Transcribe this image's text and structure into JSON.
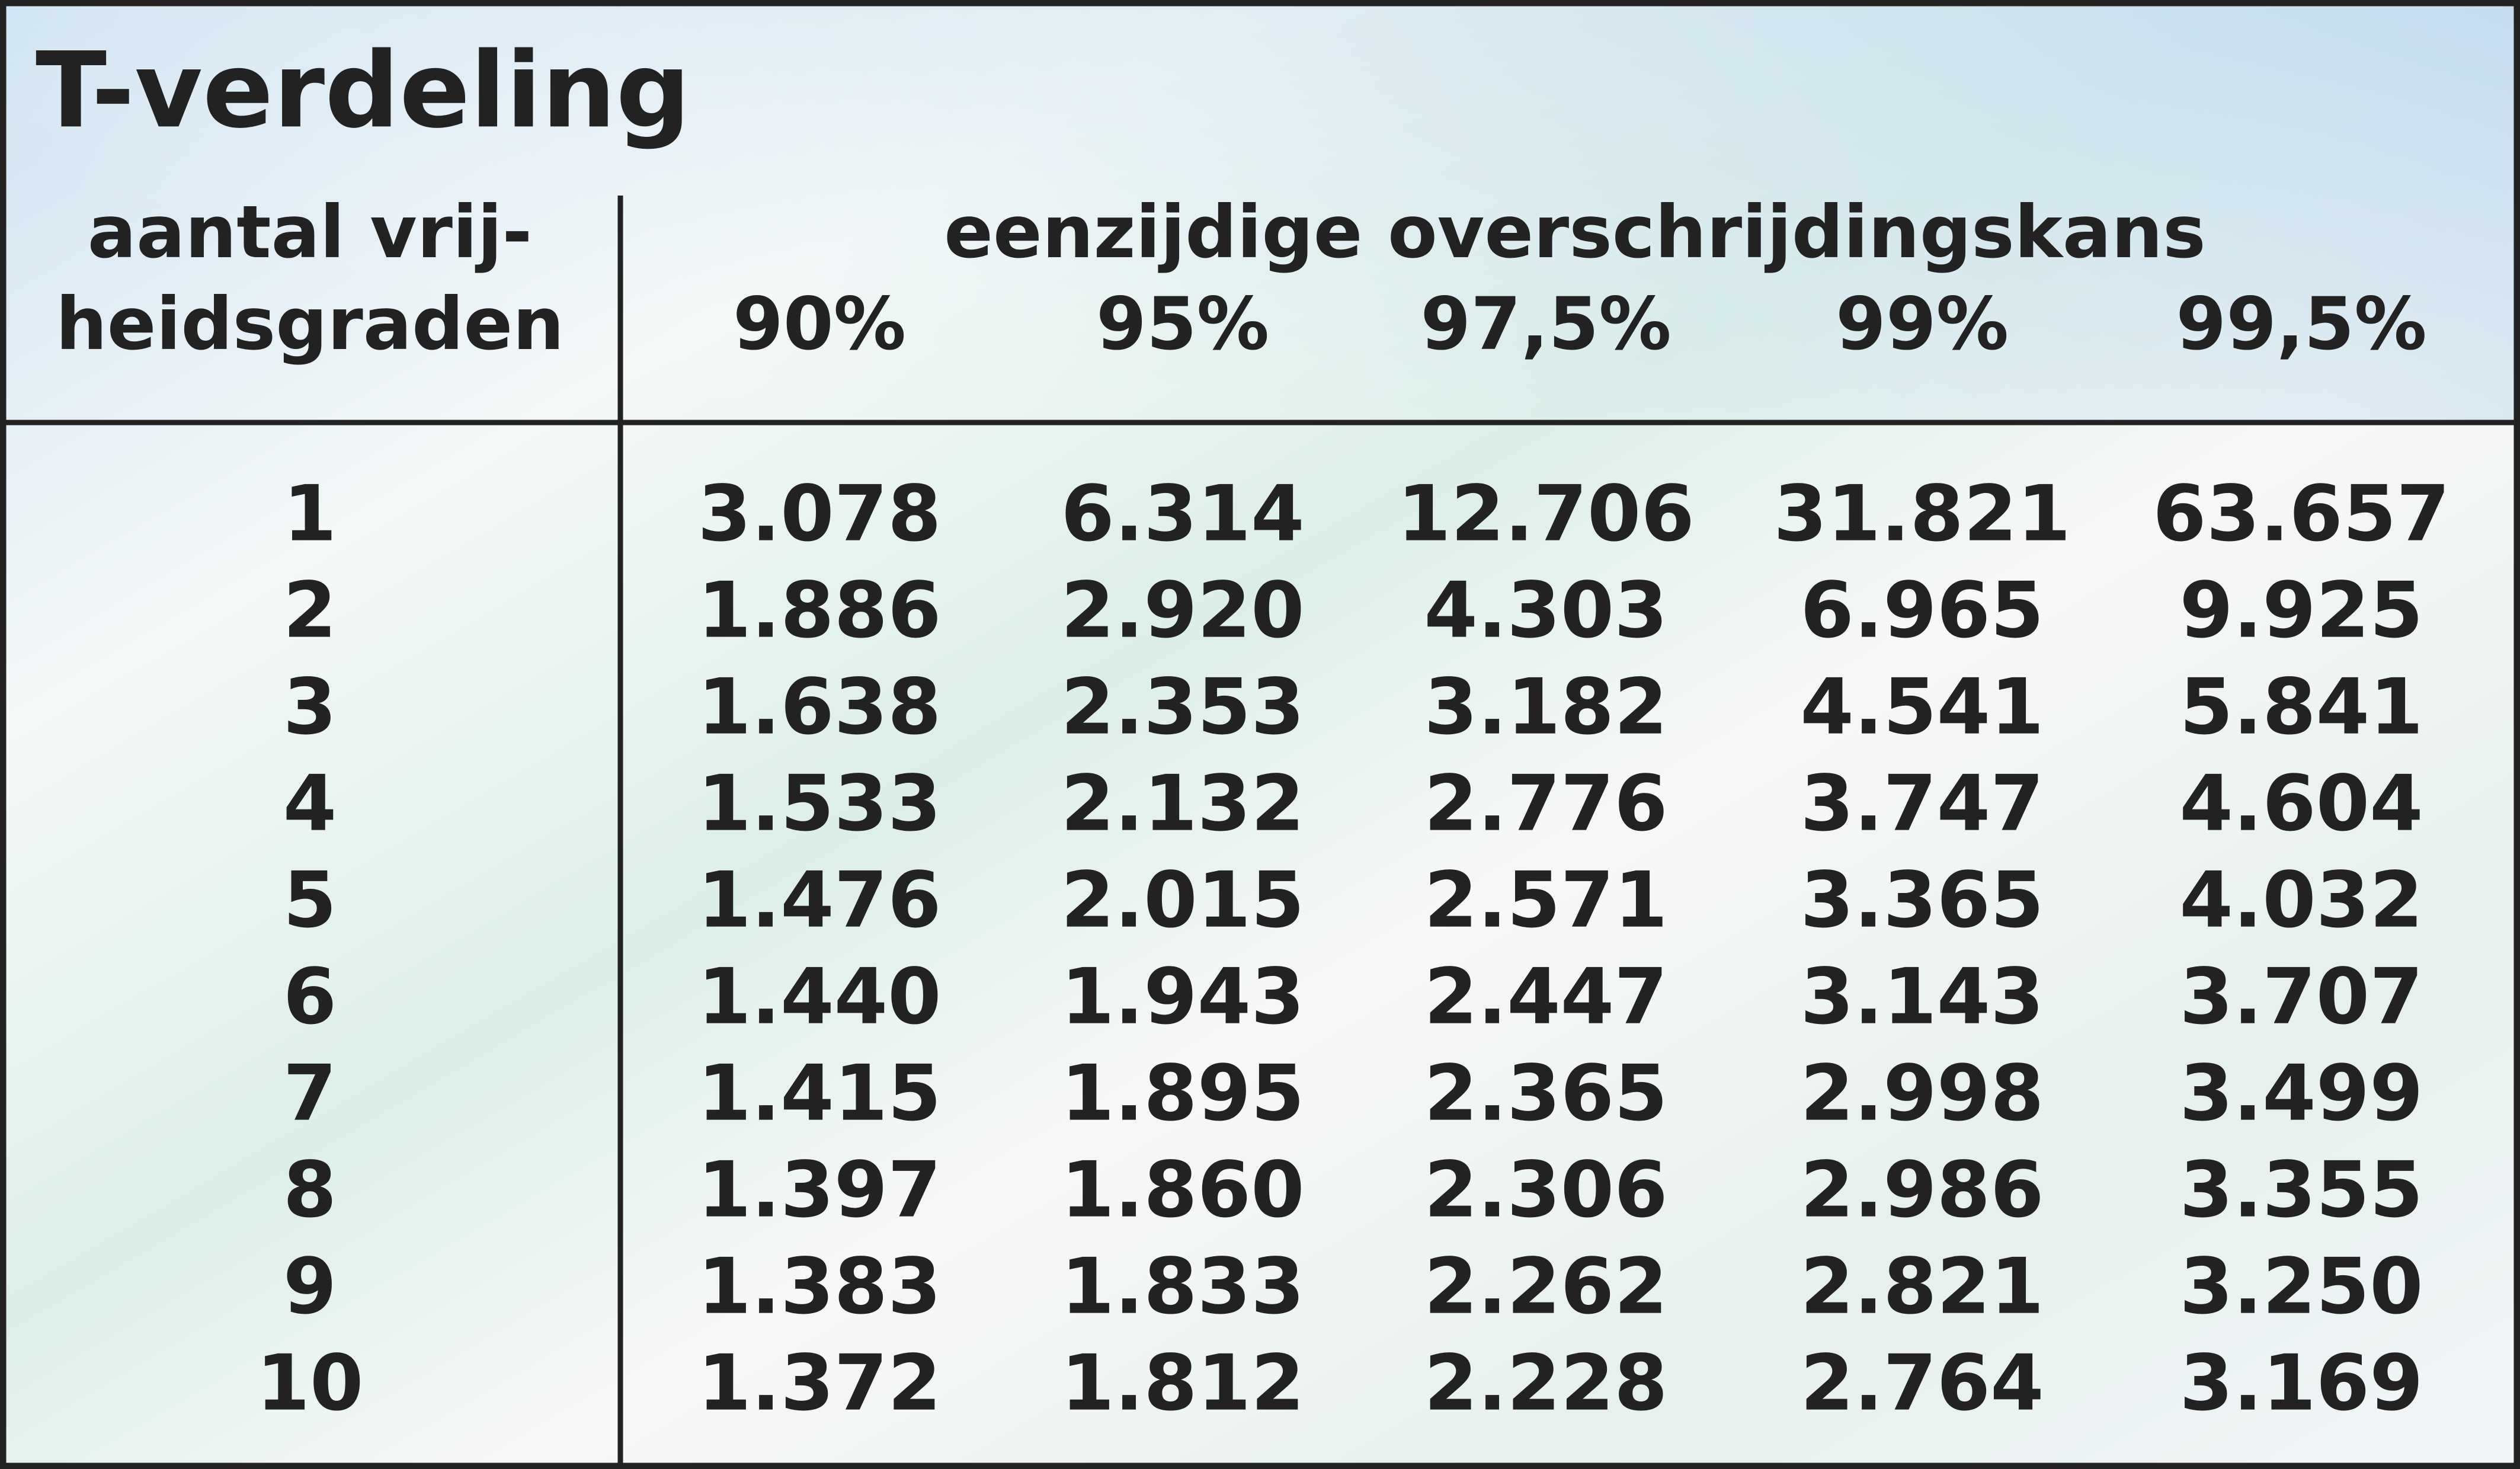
{
  "title": "T-verdeling",
  "table": {
    "row_header": [
      "aantal vrij-",
      "heidsgraden"
    ],
    "group_header": "eenzijdige overschrijdingskans",
    "columns": [
      "90%",
      "95%",
      "97,5%",
      "99%",
      "99,5%"
    ],
    "rows": [
      [
        "1",
        "3.078",
        "6.314",
        "12.706",
        "31.821",
        "63.657"
      ],
      [
        "2",
        "1.886",
        "2.920",
        "4.303",
        "6.965",
        "9.925"
      ],
      [
        "3",
        "1.638",
        "2.353",
        "3.182",
        "4.541",
        "5.841"
      ],
      [
        "4",
        "1.533",
        "2.132",
        "2.776",
        "3.747",
        "4.604"
      ],
      [
        "5",
        "1.476",
        "2.015",
        "2.571",
        "3.365",
        "4.032"
      ],
      [
        "6",
        "1.440",
        "1.943",
        "2.447",
        "3.143",
        "3.707"
      ],
      [
        "7",
        "1.415",
        "1.895",
        "2.365",
        "2.998",
        "3.499"
      ],
      [
        "8",
        "1.397",
        "1.860",
        "2.306",
        "2.986",
        "3.355"
      ],
      [
        "9",
        "1.383",
        "1.833",
        "2.262",
        "2.821",
        "3.250"
      ],
      [
        "10",
        "1.372",
        "1.812",
        "2.228",
        "2.764",
        "3.169"
      ]
    ]
  }
}
